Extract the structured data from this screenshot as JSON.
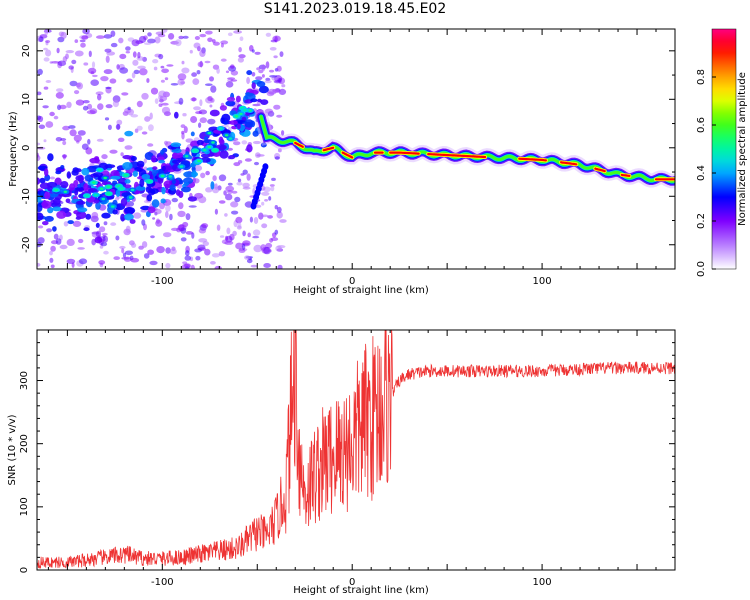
{
  "title": "S141.2023.019.18.45.E02",
  "chart_data": [
    {
      "type": "heatmap",
      "xlabel": "Height of straight line (km)",
      "ylabel": "Frequency (Hz)",
      "xlim": [
        -166,
        170
      ],
      "ylim": [
        -25,
        24.5
      ],
      "xticks": [
        -100,
        0,
        100
      ],
      "yticks": [
        -20,
        -10,
        0,
        10,
        20
      ],
      "colorbar": {
        "label": "Normalized spectral amplitude",
        "range": [
          0,
          1
        ],
        "ticks": [
          0.0,
          0.2,
          0.4,
          0.6,
          0.8
        ],
        "tick_labels": [
          "0.0",
          "0.2",
          "0.4",
          "0.6",
          "0.8"
        ],
        "colors": [
          "#ffffff",
          "#7f00ff",
          "#0000ff",
          "#00ffff",
          "#00ff00",
          "#ffff00",
          "#ff7f00",
          "#ff0000",
          "#ff0080"
        ]
      },
      "ridge": [
        {
          "x": -160,
          "y": -10
        },
        {
          "x": -140,
          "y": -9
        },
        {
          "x": -120,
          "y": -8
        },
        {
          "x": -100,
          "y": -6
        },
        {
          "x": -85,
          "y": -3
        },
        {
          "x": -70,
          "y": 2
        },
        {
          "x": -58,
          "y": 6
        },
        {
          "x": -50,
          "y": 10
        },
        {
          "x": -45,
          "y": 2
        },
        {
          "x": -50,
          "y": -12
        },
        {
          "x": -30,
          "y": 1
        },
        {
          "x": -20,
          "y": -1
        },
        {
          "x": -10,
          "y": 0
        },
        {
          "x": 0,
          "y": -2
        },
        {
          "x": 10,
          "y": -1
        },
        {
          "x": 25,
          "y": -1
        },
        {
          "x": 50,
          "y": -1.5
        },
        {
          "x": 75,
          "y": -2
        },
        {
          "x": 100,
          "y": -2.5
        },
        {
          "x": 120,
          "y": -3.5
        },
        {
          "x": 140,
          "y": -5.5
        },
        {
          "x": 160,
          "y": -6.5
        },
        {
          "x": 170,
          "y": -6.5
        }
      ]
    },
    {
      "type": "line",
      "xlabel": "Height of straight line (km)",
      "ylabel": "SNR (10 * v/v)",
      "xlim": [
        -166,
        170
      ],
      "ylim": [
        0,
        380
      ],
      "xticks": [
        -100,
        0,
        100
      ],
      "yticks": [
        0,
        100,
        200,
        300
      ],
      "color": "#ee3333",
      "series": [
        {
          "x": [
            -166,
            -150,
            -130,
            -120,
            -110,
            -100,
            -90,
            -80,
            -70,
            -60,
            -50,
            -45,
            -40,
            -35,
            -32,
            -30,
            -28,
            -25,
            -20,
            -15,
            -10,
            -5,
            0,
            5,
            10,
            15,
            20,
            25,
            30,
            40,
            60,
            80,
            100,
            120,
            140,
            160,
            170
          ],
          "y": [
            12,
            12,
            20,
            25,
            18,
            18,
            20,
            25,
            30,
            35,
            60,
            55,
            80,
            120,
            250,
            340,
            180,
            120,
            150,
            170,
            180,
            190,
            200,
            230,
            240,
            260,
            275,
            300,
            310,
            315,
            315,
            315,
            315,
            318,
            320,
            320,
            320
          ]
        }
      ]
    }
  ]
}
